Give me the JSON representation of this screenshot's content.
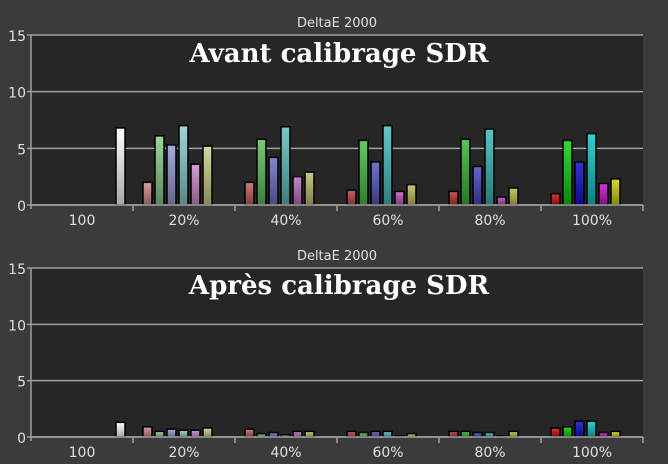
{
  "chart_data": [
    {
      "type": "bar",
      "title": "DeltaE 2000",
      "subtitle": "Avant calibrage SDR",
      "ylim": [
        0,
        15
      ],
      "yticks": [
        "0",
        "5",
        "10",
        "15"
      ],
      "xticks": [
        "100",
        "20%",
        "40%",
        "60%",
        "80%",
        "100%"
      ],
      "grid": true,
      "bar_colors": [
        "#ffffff",
        "#d08a8a",
        "#8ad08a",
        "#9a9ad6",
        "#8ad0d0",
        "#d08ad0",
        "#d0d08a"
      ],
      "group_bar_colors": [
        [
          "#ffffff"
        ],
        [
          "#d08a8a",
          "#8ad08a",
          "#9a9ad6",
          "#8ad0d0",
          "#d08ad0",
          "#d0d08a"
        ],
        [
          "#c86060",
          "#60c060",
          "#7070c8",
          "#60c0c0",
          "#c070c0",
          "#c0c070"
        ],
        [
          "#c04848",
          "#48c048",
          "#5858c8",
          "#48c0c0",
          "#c058c0",
          "#c0c058"
        ],
        [
          "#c03838",
          "#38b838",
          "#4848c8",
          "#38b8b8",
          "#c048c0",
          "#c0c048"
        ],
        [
          "#d01010",
          "#10d010",
          "#1010d0",
          "#10c8c8",
          "#d010d0",
          "#d0d010"
        ]
      ],
      "groups": [
        {
          "label": "100",
          "values": [
            6.8
          ]
        },
        {
          "label": "20%",
          "values": [
            2.0,
            6.1,
            5.3,
            7.0,
            3.6,
            5.2
          ]
        },
        {
          "label": "40%",
          "values": [
            2.0,
            5.8,
            4.2,
            6.9,
            2.5,
            2.9
          ]
        },
        {
          "label": "60%",
          "values": [
            1.3,
            5.7,
            3.8,
            7.0,
            1.2,
            1.8
          ]
        },
        {
          "label": "80%",
          "values": [
            1.2,
            5.8,
            3.4,
            6.7,
            0.7,
            1.5
          ]
        },
        {
          "label": "100%",
          "values": [
            1.0,
            5.7,
            3.8,
            6.3,
            1.9,
            2.3
          ]
        }
      ]
    },
    {
      "type": "bar",
      "title": "DeltaE 2000",
      "subtitle": "Après calibrage SDR",
      "ylim": [
        0,
        15
      ],
      "yticks": [
        "0",
        "5",
        "10",
        "15"
      ],
      "xticks": [
        "100",
        "20%",
        "40%",
        "60%",
        "80%",
        "100%"
      ],
      "grid": true,
      "group_bar_colors": [
        [
          "#ffffff"
        ],
        [
          "#d08a8a",
          "#8ad08a",
          "#9a9ad6",
          "#8ad0d0",
          "#d08ad0",
          "#d0d08a"
        ],
        [
          "#c86060",
          "#60c060",
          "#7070c8",
          "#60c0c0",
          "#c070c0",
          "#c0c070"
        ],
        [
          "#c04848",
          "#48c048",
          "#5858c8",
          "#48c0c0",
          "#c058c0",
          "#c0c058"
        ],
        [
          "#c03838",
          "#38b838",
          "#4848c8",
          "#38b8b8",
          "#c048c0",
          "#c0c048"
        ],
        [
          "#d01010",
          "#10d010",
          "#1010d0",
          "#10c8c8",
          "#d010d0",
          "#d0d010"
        ]
      ],
      "groups": [
        {
          "label": "100",
          "values": [
            1.3
          ]
        },
        {
          "label": "20%",
          "values": [
            0.9,
            0.5,
            0.7,
            0.6,
            0.6,
            0.8
          ]
        },
        {
          "label": "40%",
          "values": [
            0.7,
            0.3,
            0.4,
            0.2,
            0.5,
            0.5
          ]
        },
        {
          "label": "60%",
          "values": [
            0.5,
            0.4,
            0.5,
            0.5,
            0.1,
            0.3
          ]
        },
        {
          "label": "80%",
          "values": [
            0.5,
            0.5,
            0.4,
            0.4,
            0.1,
            0.5
          ]
        },
        {
          "label": "100%",
          "values": [
            0.8,
            0.9,
            1.4,
            1.4,
            0.4,
            0.5
          ]
        }
      ]
    }
  ],
  "colors": {
    "panel_bg": "#3b3b3b",
    "plot_bg": "#262626",
    "grid": "#a0a0a0",
    "text": "#e0e0e0",
    "overlay_text": "#ffffff"
  }
}
